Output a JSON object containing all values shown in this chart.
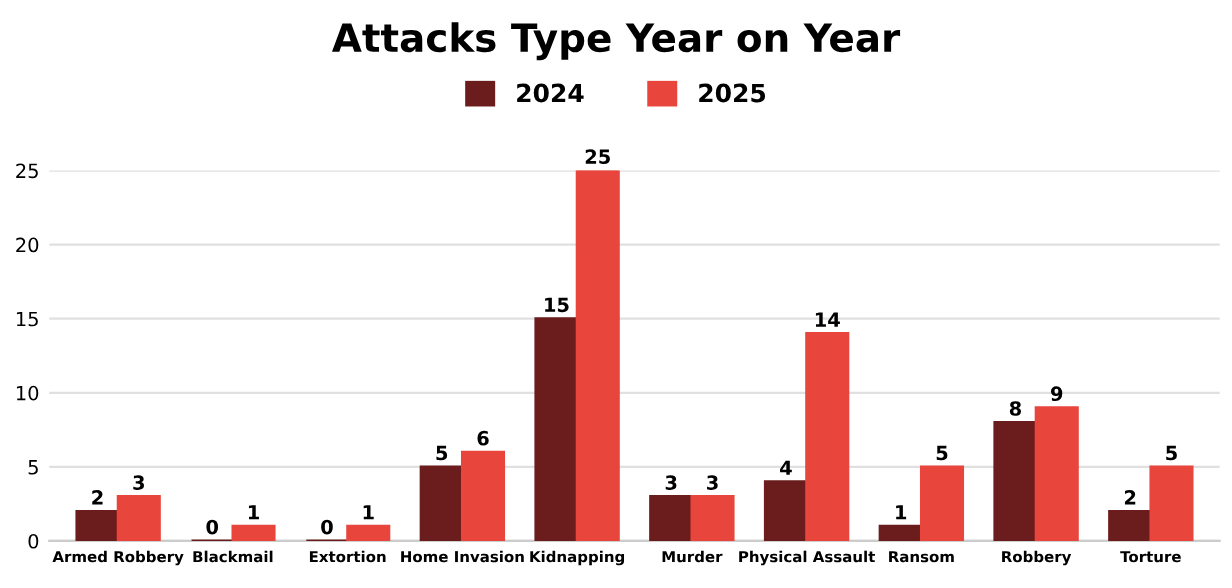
{
  "chart_data": {
    "type": "bar",
    "title": "Attacks Type Year on Year",
    "categories": [
      "Armed Robbery",
      "Blackmail",
      "Extortion",
      "Home Invasion",
      "Kidnapping",
      "Murder",
      "Physical Assault",
      "Ransom",
      "Robbery",
      "Torture"
    ],
    "series": [
      {
        "name": "2024",
        "color": "#6b1d1d",
        "values": [
          2,
          0,
          0,
          5,
          15,
          3,
          4,
          1,
          8,
          2
        ]
      },
      {
        "name": "2025",
        "color": "#e8453c",
        "values": [
          3,
          1,
          1,
          6,
          25,
          3,
          14,
          5,
          9,
          5
        ]
      }
    ],
    "ylim": [
      0,
      25
    ],
    "yticks": [
      0,
      5,
      10,
      15,
      20,
      25
    ],
    "grid": "y",
    "legend": "top",
    "data_labels": true
  }
}
